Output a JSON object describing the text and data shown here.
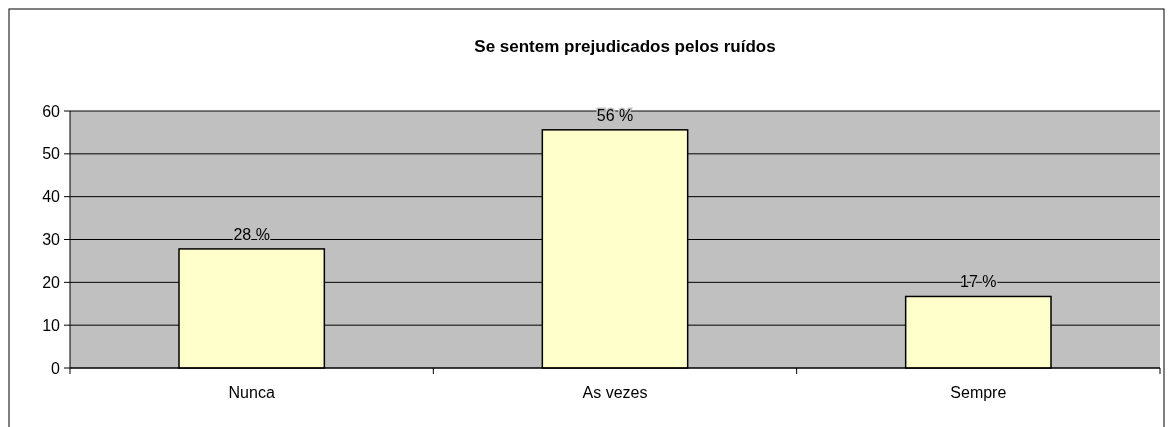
{
  "chart_data": {
    "type": "bar",
    "title": "Se sentem prejudicados pelos ruídos",
    "categories": [
      "Nunca",
      "As vezes",
      "Sempre"
    ],
    "values": [
      27.8,
      55.6,
      16.7
    ],
    "value_labels": [
      "28 %",
      "56 %",
      "17 %"
    ],
    "color": "#ffffcc",
    "ylim": [
      0,
      60
    ],
    "yticks": [
      0,
      10,
      20,
      30,
      40,
      50,
      60
    ],
    "grid": "y"
  }
}
